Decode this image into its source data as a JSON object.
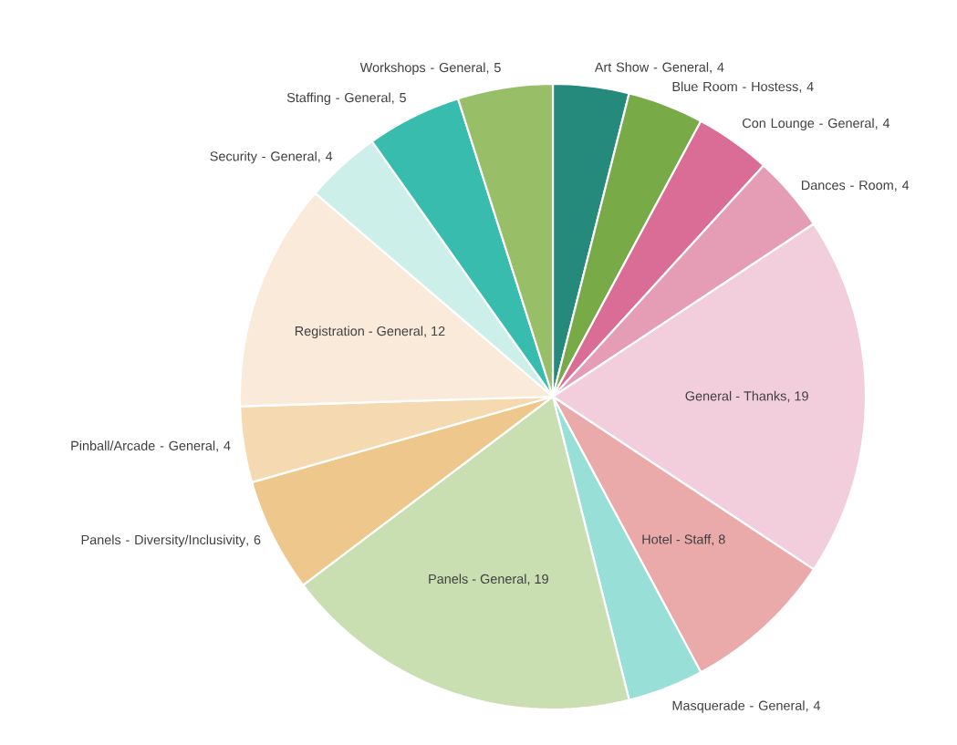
{
  "chart_data": {
    "type": "pie",
    "categories": [
      "Art Show - General",
      "Blue Room - Hostess",
      "Con Lounge - General",
      "Dances - Room",
      "General - Thanks",
      "Hotel - Staff",
      "Masquerade - General",
      "Panels - General",
      "Panels - Diversity/Inclusivity",
      "Pinball/Arcade - General",
      "Registration - General",
      "Security - General",
      "Staffing - General",
      "Workshops - General"
    ],
    "values": [
      4,
      4,
      4,
      4,
      19,
      8,
      4,
      19,
      6,
      4,
      12,
      4,
      5,
      5
    ],
    "colors": [
      "#258a7c",
      "#78ab48",
      "#d96d95",
      "#e59db6",
      "#f2cddc",
      "#eaaaa9",
      "#98e0d7",
      "#c9dfb2",
      "#eec78d",
      "#f5d9b0",
      "#faead9",
      "#cdefea",
      "#37bcad",
      "#98be68"
    ],
    "value_labels": [
      ", 4",
      ", 4",
      ", 4",
      ", 4",
      ", 19",
      ", 8",
      ", 4",
      ", 19",
      ", 6",
      ", 4",
      ", 12",
      ", 4",
      ", 5",
      ", 5"
    ]
  }
}
